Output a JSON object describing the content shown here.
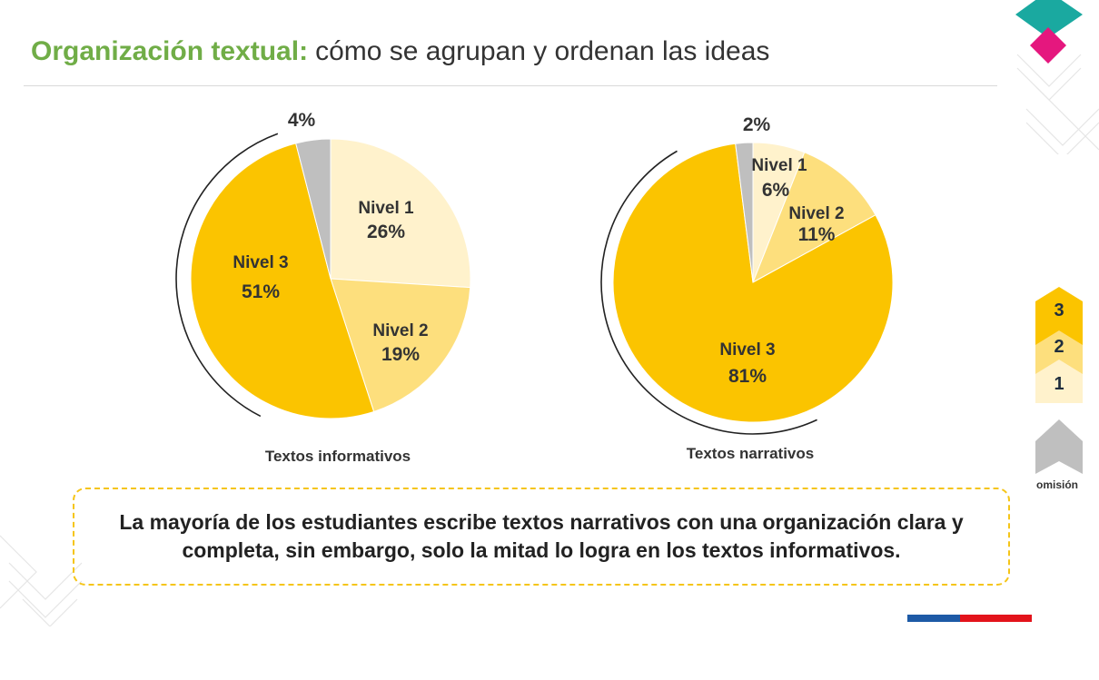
{
  "header": {
    "title_strong": "Organización textual:",
    "title_rest": "cómo se agrupan y ordenan las ideas"
  },
  "chart_data": [
    {
      "type": "pie",
      "title": "Textos informativos",
      "slices": [
        {
          "name": "Nivel 1",
          "value": 26,
          "label": "26%",
          "color": "#fff2cc"
        },
        {
          "name": "Nivel 2",
          "value": 19,
          "label": "19%",
          "color": "#fddf7d"
        },
        {
          "name": "Nivel 3",
          "value": 51,
          "label": "51%",
          "color": "#fbc400"
        },
        {
          "name": "omisión",
          "value": 4,
          "label": "4%",
          "color": "#bfbfbf"
        }
      ]
    },
    {
      "type": "pie",
      "title": "Textos narrativos",
      "slices": [
        {
          "name": "Nivel 1",
          "value": 6,
          "label": "6%",
          "color": "#fff2cc"
        },
        {
          "name": "Nivel 2",
          "value": 11,
          "label": "11%",
          "color": "#fddf7d"
        },
        {
          "name": "Nivel 3",
          "value": 81,
          "label": "81%",
          "color": "#fbc400"
        },
        {
          "name": "omisión",
          "value": 2,
          "label": "2%",
          "color": "#bfbfbf"
        }
      ]
    }
  ],
  "legend": {
    "items": [
      {
        "label": "3",
        "color": "#fbc400"
      },
      {
        "label": "2",
        "color": "#fddf7d"
      },
      {
        "label": "1",
        "color": "#fff2cc"
      }
    ],
    "omision": {
      "label": "omisión",
      "color": "#bfbfbf"
    }
  },
  "note": {
    "text": "La mayoría de los estudiantes escribe textos narrativos con una organización clara y completa, sin embargo, solo la mitad lo logra en los textos informativos."
  },
  "colors": {
    "title_green": "#70ad47",
    "accent_teal": "#1aa9a0",
    "accent_pink": "#e5177e",
    "dashed_border": "#f5c518",
    "flag_blue": "#1d5aa6",
    "flag_red": "#e3131b"
  }
}
